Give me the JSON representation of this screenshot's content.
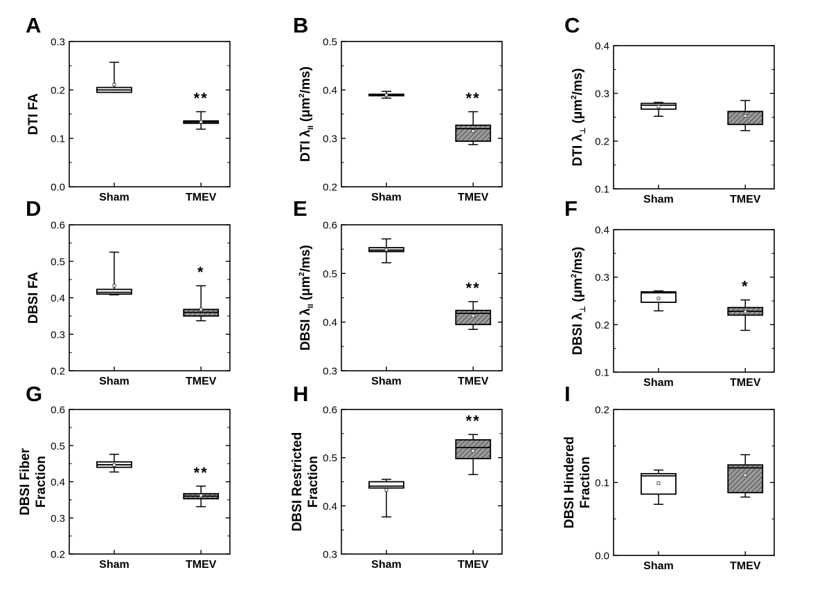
{
  "figure": {
    "panel_count": 9
  },
  "chart_data": [
    {
      "type": "box",
      "panel_letter": "A",
      "ylabel": {
        "main": "DTI FA"
      },
      "ylim": [
        0,
        0.3
      ],
      "yticks": [
        0.0,
        0.1,
        0.2,
        0.3
      ],
      "ytick_labels": [
        "0.0",
        "0.1",
        "0.2",
        "0.3"
      ],
      "categories": [
        "Sham",
        "TMEV"
      ],
      "boxes": [
        {
          "group": "Sham",
          "fill": "white",
          "whisker_low": 0.195,
          "q1": 0.195,
          "median": 0.2,
          "q3": 0.205,
          "whisker_high": 0.257,
          "mean": 0.211,
          "significance": ""
        },
        {
          "group": "TMEV",
          "fill": "hatched",
          "whisker_low": 0.119,
          "q1": 0.131,
          "median": 0.134,
          "q3": 0.136,
          "whisker_high": 0.155,
          "mean": 0.134,
          "significance": "**"
        }
      ]
    },
    {
      "type": "box",
      "panel_letter": "B",
      "ylabel": {
        "main": "DTI λ",
        "sub": "II",
        "unit_pre": " (μm",
        "sup": "2",
        "unit_post": "/ms)"
      },
      "ylim": [
        0.2,
        0.5
      ],
      "yticks": [
        0.2,
        0.3,
        0.4,
        0.5
      ],
      "ytick_labels": [
        "0.2",
        "0.3",
        "0.4",
        "0.5"
      ],
      "categories": [
        "Sham",
        "TMEV"
      ],
      "boxes": [
        {
          "group": "Sham",
          "fill": "white",
          "whisker_low": 0.383,
          "q1": 0.388,
          "median": 0.389,
          "q3": 0.391,
          "whisker_high": 0.397,
          "mean": 0.389,
          "significance": ""
        },
        {
          "group": "TMEV",
          "fill": "hatched",
          "whisker_low": 0.287,
          "q1": 0.294,
          "median": 0.32,
          "q3": 0.327,
          "whisker_high": 0.355,
          "mean": 0.315,
          "significance": "**"
        }
      ]
    },
    {
      "type": "box",
      "panel_letter": "C",
      "ylabel": {
        "main": "DTI λ",
        "sub": "⊥",
        "unit_pre": " (μm",
        "sup": "2",
        "unit_post": "/ms)"
      },
      "ylim": [
        0.1,
        0.4
      ],
      "yticks": [
        0.1,
        0.2,
        0.3,
        0.4
      ],
      "ytick_labels": [
        "0.1",
        "0.2",
        "0.3",
        "0.4"
      ],
      "categories": [
        "Sham",
        "TMEV"
      ],
      "boxes": [
        {
          "group": "Sham",
          "fill": "white",
          "whisker_low": 0.252,
          "q1": 0.267,
          "median": 0.275,
          "q3": 0.279,
          "whisker_high": 0.281,
          "mean": 0.272,
          "significance": ""
        },
        {
          "group": "TMEV",
          "fill": "hatched",
          "whisker_low": 0.222,
          "q1": 0.235,
          "median": 0.262,
          "q3": 0.262,
          "whisker_high": 0.285,
          "mean": 0.253,
          "significance": ""
        }
      ]
    },
    {
      "type": "box",
      "panel_letter": "D",
      "ylabel": {
        "main": "DBSI FA"
      },
      "ylim": [
        0.2,
        0.6
      ],
      "yticks": [
        0.2,
        0.3,
        0.4,
        0.5,
        0.6
      ],
      "ytick_labels": [
        "0.2",
        "0.3",
        "0.4",
        "0.5",
        "0.6"
      ],
      "categories": [
        "Sham",
        "TMEV"
      ],
      "boxes": [
        {
          "group": "Sham",
          "fill": "white",
          "whisker_low": 0.408,
          "q1": 0.41,
          "median": 0.415,
          "q3": 0.423,
          "whisker_high": 0.525,
          "mean": 0.433,
          "significance": ""
        },
        {
          "group": "TMEV",
          "fill": "hatched",
          "whisker_low": 0.337,
          "q1": 0.35,
          "median": 0.36,
          "q3": 0.368,
          "whisker_high": 0.433,
          "mean": 0.368,
          "significance": "*"
        }
      ]
    },
    {
      "type": "box",
      "panel_letter": "E",
      "ylabel": {
        "main": "DBSI λ",
        "sub": "II",
        "unit_pre": " (μm",
        "sup": "2",
        "unit_post": "/ms)"
      },
      "ylim": [
        0.3,
        0.6
      ],
      "yticks": [
        0.3,
        0.4,
        0.5,
        0.6
      ],
      "ytick_labels": [
        "0.3",
        "0.4",
        "0.5",
        "0.6"
      ],
      "categories": [
        "Sham",
        "TMEV"
      ],
      "boxes": [
        {
          "group": "Sham",
          "fill": "white",
          "whisker_low": 0.522,
          "q1": 0.545,
          "median": 0.548,
          "q3": 0.553,
          "whisker_high": 0.571,
          "mean": 0.549,
          "significance": ""
        },
        {
          "group": "TMEV",
          "fill": "hatched",
          "whisker_low": 0.385,
          "q1": 0.395,
          "median": 0.418,
          "q3": 0.424,
          "whisker_high": 0.442,
          "mean": 0.413,
          "significance": "**"
        }
      ]
    },
    {
      "type": "box",
      "panel_letter": "F",
      "ylabel": {
        "main": "DBSI λ",
        "sub": "⊥",
        "unit_pre": " (μm",
        "sup": "2",
        "unit_post": "/ms)"
      },
      "ylim": [
        0.1,
        0.4
      ],
      "yticks": [
        0.1,
        0.2,
        0.3,
        0.4
      ],
      "ytick_labels": [
        "0.1",
        "0.2",
        "0.3",
        "0.4"
      ],
      "categories": [
        "Sham",
        "TMEV"
      ],
      "boxes": [
        {
          "group": "Sham",
          "fill": "white",
          "whisker_low": 0.229,
          "q1": 0.247,
          "median": 0.267,
          "q3": 0.269,
          "whisker_high": 0.271,
          "mean": 0.255,
          "significance": ""
        },
        {
          "group": "TMEV",
          "fill": "hatched",
          "whisker_low": 0.188,
          "q1": 0.22,
          "median": 0.228,
          "q3": 0.236,
          "whisker_high": 0.252,
          "mean": 0.227,
          "significance": "*"
        }
      ]
    },
    {
      "type": "box",
      "panel_letter": "G",
      "ylabel": {
        "main": "DBSI Fiber",
        "line2": "Fraction"
      },
      "ylim": [
        0.2,
        0.6
      ],
      "yticks": [
        0.2,
        0.3,
        0.4,
        0.5,
        0.6
      ],
      "ytick_labels": [
        "0.2",
        "0.3",
        "0.4",
        "0.5",
        "0.6"
      ],
      "categories": [
        "Sham",
        "TMEV"
      ],
      "boxes": [
        {
          "group": "Sham",
          "fill": "white",
          "whisker_low": 0.427,
          "q1": 0.44,
          "median": 0.447,
          "q3": 0.455,
          "whisker_high": 0.476,
          "mean": 0.446,
          "significance": ""
        },
        {
          "group": "TMEV",
          "fill": "hatched",
          "whisker_low": 0.331,
          "q1": 0.353,
          "median": 0.36,
          "q3": 0.367,
          "whisker_high": 0.388,
          "mean": 0.362,
          "significance": "**"
        }
      ]
    },
    {
      "type": "box",
      "panel_letter": "H",
      "ylabel": {
        "main": "DBSI Restricted",
        "line2": "Fraction"
      },
      "ylim": [
        0.3,
        0.6
      ],
      "yticks": [
        0.3,
        0.4,
        0.5,
        0.6
      ],
      "ytick_labels": [
        "0.3",
        "0.4",
        "0.5",
        "0.6"
      ],
      "categories": [
        "Sham",
        "TMEV"
      ],
      "boxes": [
        {
          "group": "Sham",
          "fill": "white",
          "whisker_low": 0.377,
          "q1": 0.437,
          "median": 0.441,
          "q3": 0.45,
          "whisker_high": 0.455,
          "mean": 0.433,
          "significance": ""
        },
        {
          "group": "TMEV",
          "fill": "hatched",
          "whisker_low": 0.465,
          "q1": 0.498,
          "median": 0.521,
          "q3": 0.537,
          "whisker_high": 0.548,
          "mean": 0.514,
          "significance": "**"
        }
      ]
    },
    {
      "type": "box",
      "panel_letter": "I",
      "ylabel": {
        "main": "DBSI Hindered",
        "line2": "Fraction"
      },
      "ylim": [
        0.0,
        0.2
      ],
      "yticks": [
        0.0,
        0.1,
        0.2
      ],
      "ytick_labels": [
        "0.0",
        "0.1",
        "0.2"
      ],
      "categories": [
        "Sham",
        "TMEV"
      ],
      "boxes": [
        {
          "group": "Sham",
          "fill": "white",
          "whisker_low": 0.07,
          "q1": 0.084,
          "median": 0.109,
          "q3": 0.112,
          "whisker_high": 0.117,
          "mean": 0.099,
          "significance": ""
        },
        {
          "group": "TMEV",
          "fill": "hatched",
          "whisker_low": 0.08,
          "q1": 0.086,
          "median": 0.12,
          "q3": 0.124,
          "whisker_high": 0.138,
          "mean": 0.11,
          "significance": ""
        }
      ]
    }
  ]
}
